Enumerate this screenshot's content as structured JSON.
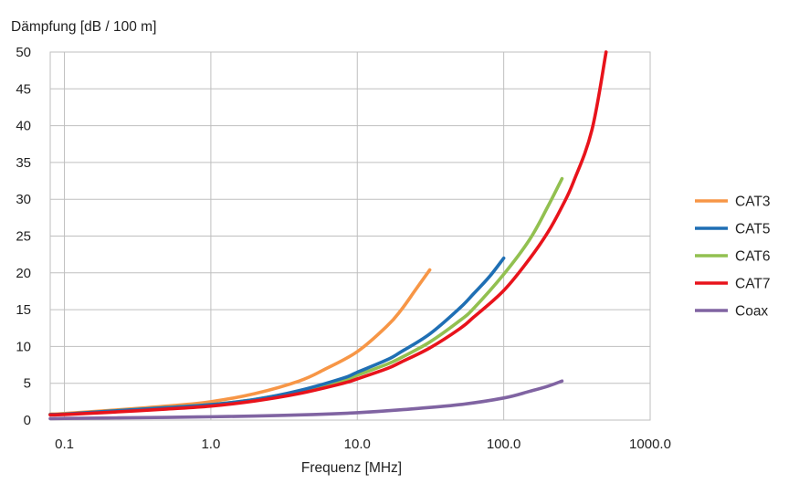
{
  "chart_data": {
    "type": "line",
    "title": "",
    "ylabel": "Dämpfung [dB / 100 m]",
    "xlabel": "Frequenz [MHz]",
    "x_scale": "log",
    "xlim": [
      0.08,
      1000
    ],
    "ylim": [
      0,
      50
    ],
    "x_ticks": [
      0.1,
      1,
      10,
      100,
      1000
    ],
    "x_tick_labels": [
      "0.1",
      "1.0",
      "10.0",
      "100.0",
      "1000.0"
    ],
    "y_ticks": [
      0,
      5,
      10,
      15,
      20,
      25,
      30,
      35,
      40,
      45,
      50
    ],
    "y_tick_labels": [
      "0",
      "5",
      "10",
      "15",
      "20",
      "25",
      "30",
      "35",
      "40",
      "45",
      "50"
    ],
    "grid": true,
    "legend_position": "right",
    "series": [
      {
        "name": "CAT3",
        "color": "#f79646",
        "points": [
          [
            0.08,
            0.8
          ],
          [
            0.1,
            0.9
          ],
          [
            0.2,
            1.3
          ],
          [
            0.5,
            1.9
          ],
          [
            1,
            2.5
          ],
          [
            2,
            3.6
          ],
          [
            4,
            5.3
          ],
          [
            6,
            6.9
          ],
          [
            10,
            9.3
          ],
          [
            16,
            12.8
          ],
          [
            20,
            15.0
          ],
          [
            25,
            17.7
          ],
          [
            31.25,
            20.4
          ]
        ]
      },
      {
        "name": "CAT5",
        "color": "#1f6fb4",
        "points": [
          [
            0.08,
            0.75
          ],
          [
            0.1,
            0.8
          ],
          [
            0.2,
            1.2
          ],
          [
            0.5,
            1.7
          ],
          [
            1,
            2.1
          ],
          [
            2,
            2.8
          ],
          [
            4,
            4.0
          ],
          [
            8,
            5.7
          ],
          [
            10,
            6.5
          ],
          [
            16,
            8.2
          ],
          [
            20,
            9.3
          ],
          [
            31.25,
            11.7
          ],
          [
            50,
            15.2
          ],
          [
            62.5,
            17.2
          ],
          [
            80,
            19.5
          ],
          [
            100,
            22.0
          ]
        ]
      },
      {
        "name": "CAT6",
        "color": "#92c050",
        "points": [
          [
            0.08,
            0.75
          ],
          [
            0.1,
            0.8
          ],
          [
            0.2,
            1.2
          ],
          [
            0.5,
            1.7
          ],
          [
            1,
            2.1
          ],
          [
            2,
            2.8
          ],
          [
            4,
            3.9
          ],
          [
            8,
            5.4
          ],
          [
            10,
            6.1
          ],
          [
            16,
            7.6
          ],
          [
            20,
            8.5
          ],
          [
            31.25,
            10.6
          ],
          [
            50,
            13.5
          ],
          [
            62.5,
            15.2
          ],
          [
            100,
            19.8
          ],
          [
            150,
            24.5
          ],
          [
            200,
            29.0
          ],
          [
            250,
            32.8
          ]
        ]
      },
      {
        "name": "CAT7",
        "color": "#e8131b",
        "points": [
          [
            0.08,
            0.7
          ],
          [
            0.1,
            0.75
          ],
          [
            0.2,
            1.05
          ],
          [
            0.5,
            1.5
          ],
          [
            1,
            1.9
          ],
          [
            2,
            2.6
          ],
          [
            4,
            3.6
          ],
          [
            8,
            5.0
          ],
          [
            10,
            5.6
          ],
          [
            16,
            7.0
          ],
          [
            20,
            7.9
          ],
          [
            31.25,
            9.8
          ],
          [
            50,
            12.4
          ],
          [
            62.5,
            14.0
          ],
          [
            100,
            17.6
          ],
          [
            150,
            21.9
          ],
          [
            200,
            25.5
          ],
          [
            250,
            29.0
          ],
          [
            300,
            32.4
          ],
          [
            400,
            39.4
          ],
          [
            500,
            50.0
          ]
        ]
      },
      {
        "name": "Coax",
        "color": "#8064a2",
        "points": [
          [
            0.08,
            0.2
          ],
          [
            0.1,
            0.22
          ],
          [
            0.5,
            0.37
          ],
          [
            1,
            0.45
          ],
          [
            2,
            0.55
          ],
          [
            5,
            0.75
          ],
          [
            10,
            1.0
          ],
          [
            20,
            1.4
          ],
          [
            50,
            2.1
          ],
          [
            100,
            3.0
          ],
          [
            150,
            3.9
          ],
          [
            200,
            4.6
          ],
          [
            250,
            5.3
          ]
        ]
      }
    ]
  }
}
